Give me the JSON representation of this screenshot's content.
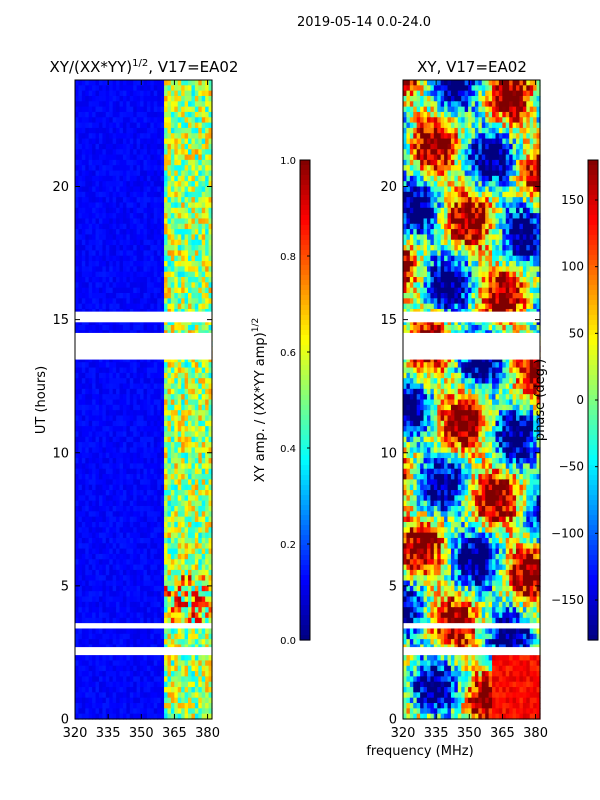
{
  "figure": {
    "suptitle": "2019-05-14 0.0-24.0",
    "shared_xlabel": "frequency (MHz)"
  },
  "colors": {
    "jet": [
      "#00007f",
      "#0000ff",
      "#007fff",
      "#00ffff",
      "#7fff7f",
      "#ffff00",
      "#ff7f00",
      "#ff0000",
      "#7f0000"
    ],
    "gap": "#ffffff",
    "axis": "#000000"
  },
  "chart_data": [
    {
      "type": "heatmap",
      "name": "amplitude-ratio",
      "title": "XY/(XX*YY)",
      "title_superscript": "1/2",
      "title_suffix": ", V17=EA02",
      "xlabel": "",
      "ylabel": "UT (hours)",
      "xlim": [
        320,
        382
      ],
      "ylim": [
        0,
        24
      ],
      "xticks": [
        320,
        335,
        350,
        365,
        380
      ],
      "yticks": [
        0,
        5,
        10,
        15,
        20
      ],
      "colorbar": {
        "label": "XY amp. / (XX*YY amp)",
        "label_superscript": "1/2",
        "range": [
          0.0,
          1.0
        ],
        "ticks": [
          "0.0",
          "0.2",
          "0.4",
          "0.6",
          "0.8",
          "1.0"
        ],
        "tick_values": [
          0.0,
          0.2,
          0.4,
          0.6,
          0.8,
          1.0
        ]
      },
      "flagged_ut_hours": [
        [
          2.4,
          2.7
        ],
        [
          3.4,
          3.6
        ],
        [
          13.5,
          14.5
        ],
        [
          14.9,
          15.3
        ]
      ],
      "rfi_band_mhz": [
        361,
        382
      ],
      "background_value": 0.1,
      "rfi_value_range": [
        0.35,
        0.9
      ]
    },
    {
      "type": "heatmap",
      "name": "phase",
      "title": "XY, V17=EA02",
      "xlabel": "",
      "ylabel": "",
      "xlim": [
        320,
        382
      ],
      "ylim": [
        0,
        24
      ],
      "xticks": [
        320,
        335,
        350,
        365,
        380
      ],
      "yticks": [
        0,
        5,
        10,
        15,
        20
      ],
      "colorbar": {
        "label": "phase (deg.)",
        "range": [
          -180,
          180
        ],
        "ticks": [
          "−150",
          "−100",
          "−50",
          "0",
          "50",
          "100",
          "150"
        ],
        "tick_values": [
          -150,
          -100,
          -50,
          0,
          50,
          100,
          150
        ]
      },
      "flagged_ut_hours": [
        [
          2.4,
          2.7
        ],
        [
          3.4,
          3.6
        ],
        [
          13.5,
          14.5
        ],
        [
          14.9,
          15.3
        ]
      ],
      "phase_range_deg": [
        -180,
        180
      ]
    }
  ]
}
